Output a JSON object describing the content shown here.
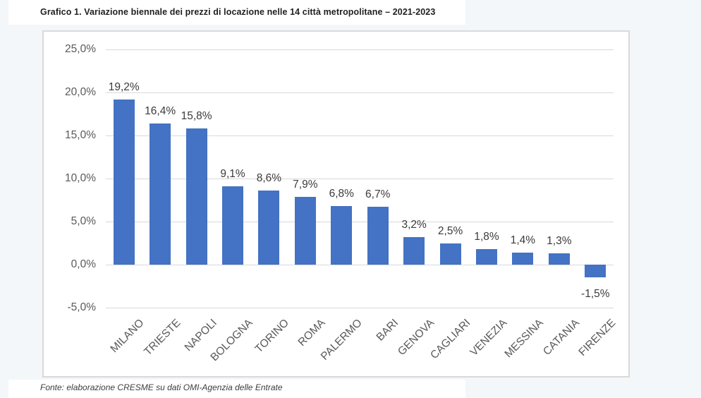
{
  "header": {
    "title": "Grafico 1. Variazione biennale dei prezzi di locazione nelle 14 città metropolitane – 2021-2023"
  },
  "footer": {
    "source_note": "Fonte: elaborazione CRESME su dati OMI-Agenzia delle Entrate"
  },
  "colors": {
    "bar": "#4472C4",
    "gridline": "#D9D9D9",
    "axis_text": "#595959",
    "value_label_text": "#3B3B3B",
    "panel_background": "#FFFFFF",
    "panel_border": "#D9D9D9",
    "page_background": "#F3F7FA",
    "title_text": "#1F1F1F"
  },
  "chart_data": {
    "type": "bar",
    "title": "Grafico 1. Variazione biennale dei prezzi di locazione nelle 14 città metropolitane – 2021-2023",
    "categories": [
      "MILANO",
      "TRIESTE",
      "NAPOLI",
      "BOLOGNA",
      "TORINO",
      "ROMA",
      "PALERMO",
      "BARI",
      "GENOVA",
      "CAGLIARI",
      "VENEZIA",
      "MESSINA",
      "CATANIA",
      "FIRENZE"
    ],
    "values": [
      19.2,
      16.4,
      15.8,
      9.1,
      8.6,
      7.9,
      6.8,
      6.7,
      3.2,
      2.5,
      1.8,
      1.4,
      1.3,
      -1.5
    ],
    "value_labels": [
      "19,2%",
      "16,4%",
      "15,8%",
      "9,1%",
      "8,6%",
      "7,9%",
      "6,8%",
      "6,7%",
      "3,2%",
      "2,5%",
      "1,8%",
      "1,4%",
      "1,3%",
      "-1,5%"
    ],
    "xlabel": "",
    "ylabel": "",
    "y_tick_labels": [
      "25,0%",
      "20,0%",
      "15,0%",
      "10,0%",
      "5,0%",
      "0,0%",
      "-5,0%"
    ],
    "y_tick_values": [
      25,
      20,
      15,
      10,
      5,
      0,
      -5
    ],
    "ylim": [
      -5,
      25
    ],
    "grid": "horizontal",
    "legend": "none",
    "bar_label_format": "it-IT percent, one decimal",
    "x_label_rotation_deg": -45
  }
}
